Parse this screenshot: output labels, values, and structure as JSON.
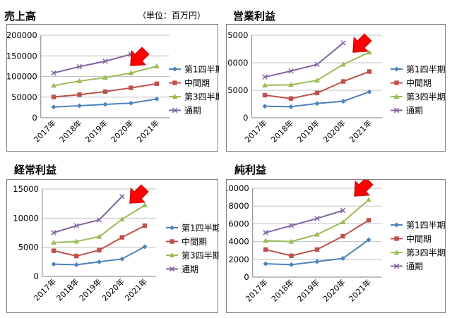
{
  "header": {
    "unit": "（単位：百万円）"
  },
  "colors": {
    "q1": "#4F81BD",
    "mid": "#C0504D",
    "q3": "#9BBB59",
    "full": "#8064A2",
    "arrow": "#FF0000",
    "grid": "#BFBFBF",
    "axis": "#808080"
  },
  "legend": [
    "第1四半期",
    "中間期",
    "第3四半期",
    "通期"
  ],
  "chart_data": [
    {
      "type": "line",
      "title": "売上高",
      "categories": [
        "2017年",
        "2018年",
        "2019年",
        "2020年",
        "2021年"
      ],
      "ylim": [
        0,
        200000
      ],
      "yticks": [
        0,
        50000,
        100000,
        150000,
        200000
      ],
      "ytick_labels": [
        "0",
        "50000",
        "100000",
        "150000",
        "200000"
      ],
      "series": [
        {
          "name": "第1四半期",
          "values": [
            26000,
            29000,
            32500,
            35500,
            45500
          ]
        },
        {
          "name": "中間期",
          "values": [
            50500,
            56000,
            63500,
            72500,
            82500
          ]
        },
        {
          "name": "第3四半期",
          "values": [
            78000,
            89000,
            97500,
            108500,
            125000
          ]
        },
        {
          "name": "通期",
          "values": [
            108500,
            124000,
            137000,
            154000,
            null
          ]
        }
      ]
    },
    {
      "type": "line",
      "title": "営業利益",
      "categories": [
        "2017年",
        "2018年",
        "2019年",
        "2020年",
        "2021年"
      ],
      "ylim": [
        0,
        15000
      ],
      "yticks": [
        0,
        5000,
        10000,
        15000
      ],
      "ytick_labels": [
        "0",
        "5000",
        "10000",
        "15000"
      ],
      "series": [
        {
          "name": "第1四半期",
          "values": [
            2100,
            2000,
            2600,
            3000,
            4700
          ]
        },
        {
          "name": "中間期",
          "values": [
            4100,
            3500,
            4500,
            6600,
            8400
          ]
        },
        {
          "name": "第3四半期",
          "values": [
            5900,
            6000,
            6800,
            9700,
            11900
          ]
        },
        {
          "name": "通期",
          "values": [
            7400,
            8500,
            9700,
            13600,
            null
          ]
        }
      ]
    },
    {
      "type": "line",
      "title": "経常利益",
      "categories": [
        "2017年",
        "2018年",
        "2019年",
        "2020年",
        "2021年"
      ],
      "ylim": [
        0,
        15000
      ],
      "yticks": [
        0,
        5000,
        10000,
        15000
      ],
      "ytick_labels": [
        "0",
        "5000",
        "10000",
        "15000"
      ],
      "series": [
        {
          "name": "第1四半期",
          "values": [
            2100,
            2000,
            2500,
            3000,
            5100
          ]
        },
        {
          "name": "中間期",
          "values": [
            4400,
            3500,
            4500,
            6700,
            8700
          ]
        },
        {
          "name": "第3四半期",
          "values": [
            5800,
            6000,
            6800,
            9800,
            12200
          ]
        },
        {
          "name": "通期",
          "values": [
            7500,
            8700,
            9700,
            13700,
            null
          ]
        }
      ]
    },
    {
      "type": "line",
      "title": "純利益",
      "categories": [
        "2017年",
        "2018年",
        "2019年",
        "2020年",
        "2021年"
      ],
      "ylim": [
        0,
        10000
      ],
      "yticks": [
        0,
        2000,
        4000,
        6000,
        8000,
        10000
      ],
      "ytick_labels": [
        "0",
        "2000",
        "4000",
        "6000",
        "8000",
        "10000"
      ],
      "series": [
        {
          "name": "第1四半期",
          "values": [
            1500,
            1400,
            1750,
            2100,
            4200
          ]
        },
        {
          "name": "中間期",
          "values": [
            3100,
            2400,
            3100,
            4600,
            6400
          ]
        },
        {
          "name": "第3四半期",
          "values": [
            4100,
            4000,
            4800,
            6200,
            8700
          ]
        },
        {
          "name": "通期",
          "values": [
            5000,
            5800,
            6600,
            7500,
            null
          ]
        }
      ]
    }
  ]
}
